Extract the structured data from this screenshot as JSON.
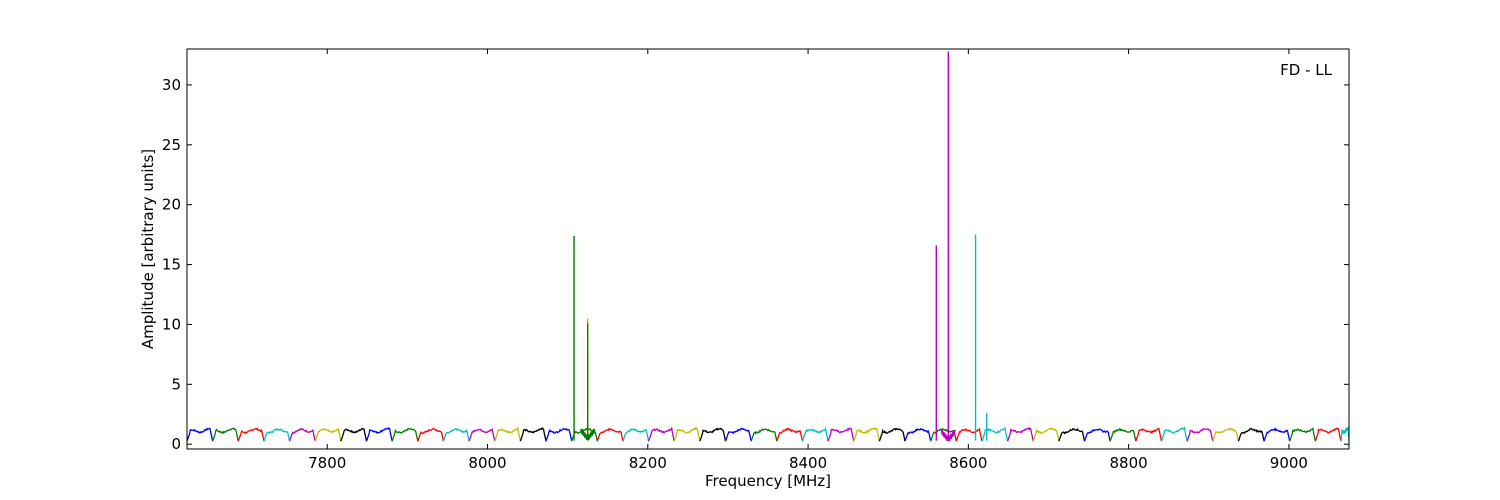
{
  "chart_data": {
    "type": "line",
    "title": "",
    "annotation": "FD - LL",
    "xlabel": "Frequency [MHz]",
    "ylabel": "Amplitude [arbitrary units]",
    "xlim": [
      7625,
      9075
    ],
    "ylim": [
      -0.4,
      33.0
    ],
    "xticks": [
      7800,
      8000,
      8200,
      8400,
      8600,
      8800,
      9000
    ],
    "yticks": [
      0,
      5,
      10,
      15,
      20,
      25,
      30
    ],
    "grid": false,
    "legend": "none",
    "series_note": "spectral sub-bands, each ~32 MHz wide, colors cycle",
    "colors": [
      "#0000ff",
      "#008000",
      "#ff0000",
      "#00bfbf",
      "#bf00bf",
      "#bfbf00",
      "#000000"
    ],
    "band_start": 7625,
    "band_width": 32,
    "baseline_level": 1.1,
    "spikes": [
      {
        "x": 8108,
        "y": 17.4,
        "color": "#008000"
      },
      {
        "x": 8125,
        "y": 10.5,
        "color": "#bfbf00"
      },
      {
        "x": 8125,
        "y": 10.1,
        "color": "#008000"
      },
      {
        "x": 8560,
        "y": 16.6,
        "color": "#bf00bf"
      },
      {
        "x": 8575,
        "y": 32.8,
        "color": "#bf00bf"
      },
      {
        "x": 8609,
        "y": 17.5,
        "color": "#00bfbf"
      },
      {
        "x": 8623,
        "y": 2.6,
        "color": "#00bfbf"
      }
    ],
    "dips": [
      {
        "x": 8125,
        "y": 0.1,
        "color": "#008000"
      },
      {
        "x": 8575,
        "y": 0.0,
        "color": "#bf00bf"
      }
    ]
  }
}
